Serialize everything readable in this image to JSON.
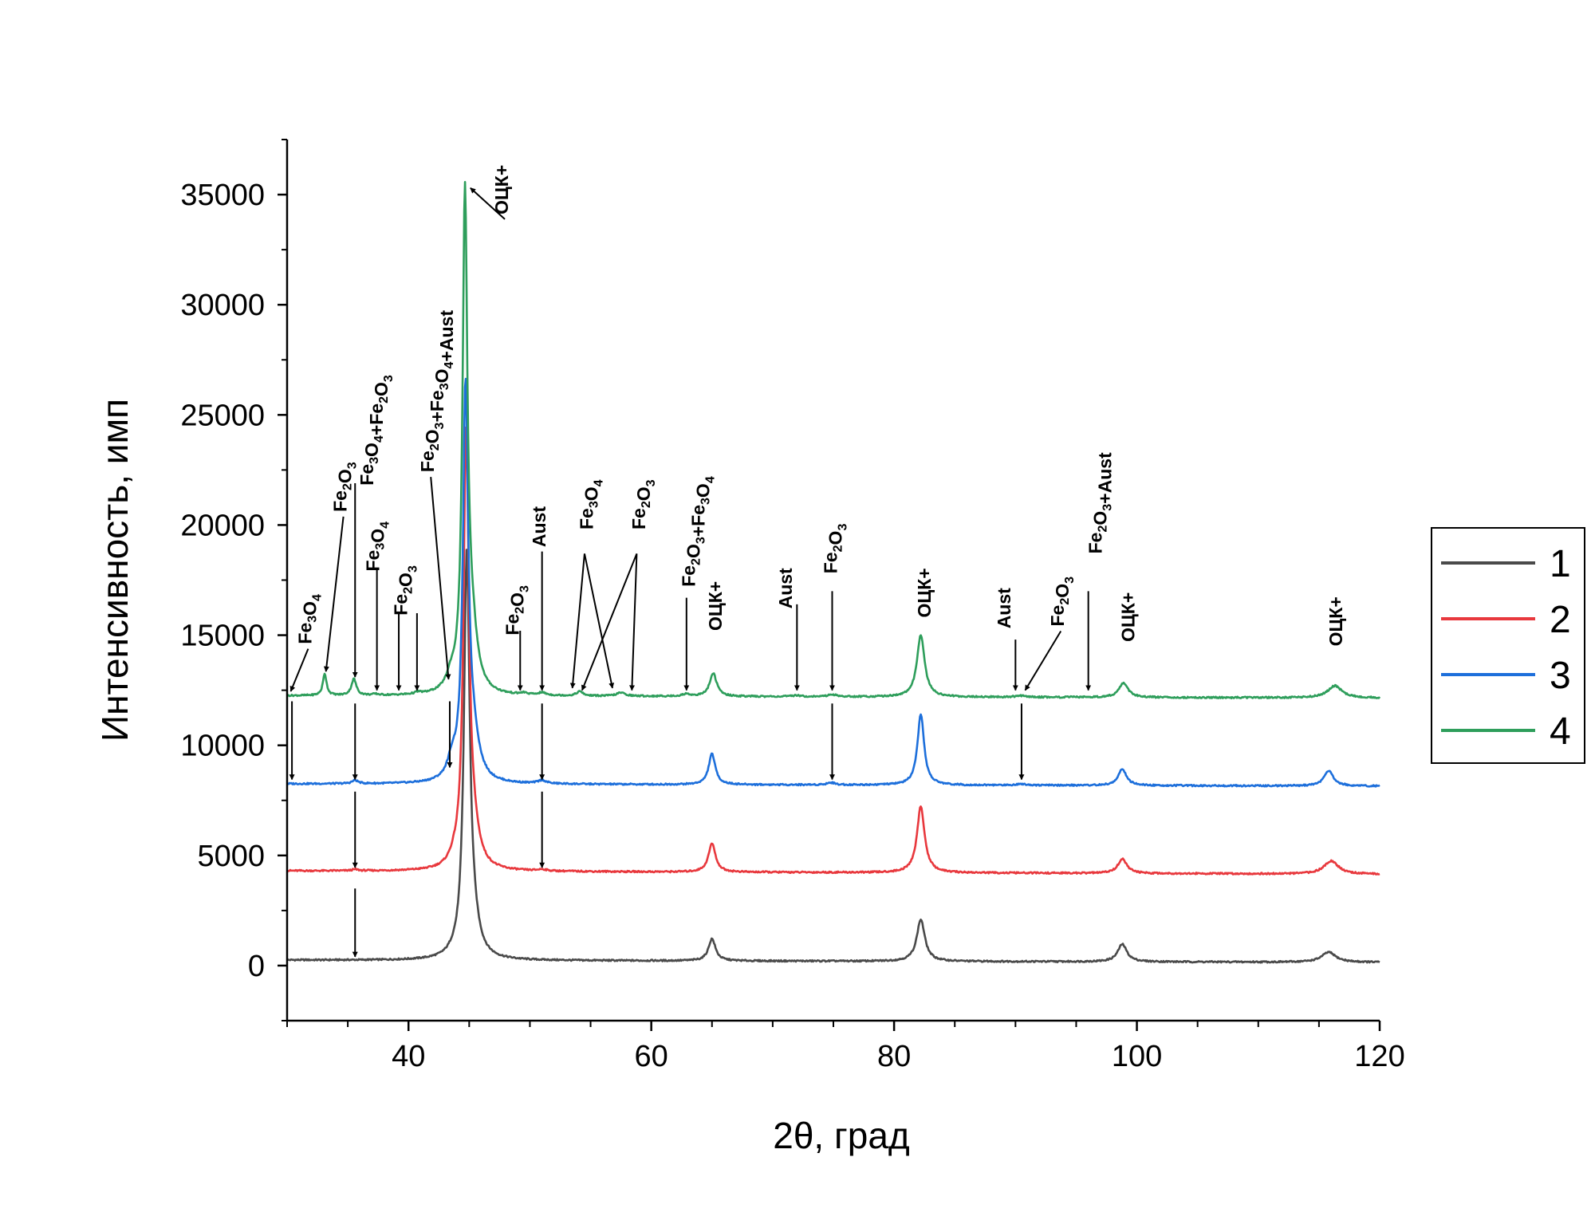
{
  "chart_data": {
    "type": "line",
    "title": "",
    "xlabel": "2θ, град",
    "ylabel": "Интенсивность, имп",
    "xlim": [
      30,
      120
    ],
    "ylim": [
      -2500,
      37500
    ],
    "xticks": [
      40,
      60,
      80,
      100,
      120
    ],
    "yticks": [
      0,
      5000,
      10000,
      15000,
      20000,
      25000,
      30000,
      35000
    ],
    "grid": false,
    "legend": "right",
    "legend_entries": [
      "1",
      "2",
      "3",
      "4"
    ],
    "series": [
      {
        "name": "1",
        "color": "#4a4a4a",
        "baseline": 250,
        "baseline_end": 150,
        "peaks": [
          [
            43.7,
            100,
            0.5
          ],
          [
            44.8,
            18000,
            0.28
          ],
          [
            45.3,
            1200,
            0.6
          ],
          [
            65.0,
            1000,
            0.35
          ],
          [
            82.2,
            1900,
            0.4
          ],
          [
            98.8,
            800,
            0.45
          ],
          [
            115.8,
            450,
            0.7
          ]
        ]
      },
      {
        "name": "2",
        "color": "#e8383d",
        "baseline": 4300,
        "baseline_end": 4150,
        "peaks": [
          [
            35.6,
            60,
            0.3
          ],
          [
            43.8,
            300,
            0.5
          ],
          [
            44.75,
            19500,
            0.26
          ],
          [
            45.3,
            1500,
            0.6
          ],
          [
            51.0,
            70,
            0.4
          ],
          [
            65.0,
            1300,
            0.35
          ],
          [
            82.2,
            3000,
            0.38
          ],
          [
            98.8,
            650,
            0.45
          ],
          [
            116.0,
            600,
            0.7
          ]
        ]
      },
      {
        "name": "3",
        "color": "#1d6fdb",
        "baseline": 8250,
        "baseline_end": 8150,
        "peaks": [
          [
            35.6,
            150,
            0.3
          ],
          [
            43.6,
            800,
            0.45
          ],
          [
            44.7,
            17500,
            0.26
          ],
          [
            45.3,
            1800,
            0.6
          ],
          [
            51.0,
            150,
            0.4
          ],
          [
            65.0,
            1400,
            0.33
          ],
          [
            74.8,
            100,
            0.4
          ],
          [
            82.2,
            3200,
            0.33
          ],
          [
            90.5,
            60,
            0.5
          ],
          [
            98.8,
            750,
            0.4
          ],
          [
            115.8,
            700,
            0.45
          ]
        ]
      },
      {
        "name": "4",
        "color": "#2e9e5b",
        "baseline": 12250,
        "baseline_end": 12150,
        "peaks": [
          [
            33.1,
            1000,
            0.18
          ],
          [
            35.5,
            750,
            0.24
          ],
          [
            37.3,
            50,
            0.3
          ],
          [
            40.8,
            80,
            0.3
          ],
          [
            43.5,
            550,
            0.45
          ],
          [
            44.65,
            22000,
            0.24
          ],
          [
            45.2,
            2500,
            0.55
          ],
          [
            49.5,
            80,
            0.35
          ],
          [
            51.0,
            120,
            0.4
          ],
          [
            54.1,
            200,
            0.3
          ],
          [
            57.5,
            150,
            0.45
          ],
          [
            62.9,
            100,
            0.4
          ],
          [
            65.1,
            1050,
            0.35
          ],
          [
            72.0,
            60,
            0.4
          ],
          [
            74.9,
            100,
            0.4
          ],
          [
            82.2,
            2800,
            0.38
          ],
          [
            90.4,
            60,
            0.5
          ],
          [
            98.9,
            650,
            0.45
          ],
          [
            116.3,
            550,
            0.7
          ]
        ]
      }
    ],
    "annotations": [
      {
        "text": "Fe3O4",
        "parts": [
          [
            "Fe",
            ""
          ],
          [
            "3",
            "sub"
          ],
          [
            "O",
            ""
          ],
          [
            "4",
            "sub"
          ]
        ],
        "at": [
          30.3,
          12450
        ],
        "label": [
          32.0,
          14600
        ],
        "arrow": "diag"
      },
      {
        "text": "Fe2O3",
        "parts": [
          [
            "Fe",
            ""
          ],
          [
            "2",
            "sub"
          ],
          [
            "O",
            ""
          ],
          [
            "3",
            "sub"
          ]
        ],
        "at": [
          33.2,
          13350
        ],
        "label": [
          34.9,
          20600
        ],
        "arrow": "diag"
      },
      {
        "text": "Fe3O4+Fe2O3",
        "parts": [
          [
            "Fe",
            ""
          ],
          [
            "3",
            "sub"
          ],
          [
            "O",
            ""
          ],
          [
            "4",
            "sub"
          ],
          [
            "+Fe",
            ""
          ],
          [
            "2",
            "sub"
          ],
          [
            "O",
            ""
          ],
          [
            "3",
            "sub"
          ]
        ],
        "at": [
          35.6,
          13100
        ],
        "label": [
          37.1,
          21800
        ],
        "arrow": "vert",
        "from": 21900
      },
      {
        "text": "Fe3O4",
        "parts": [
          [
            "Fe",
            ""
          ],
          [
            "3",
            "sub"
          ],
          [
            "O",
            ""
          ],
          [
            "4",
            "sub"
          ]
        ],
        "at": [
          37.4,
          12500
        ],
        "label": [
          37.6,
          17900
        ],
        "arrow": "vert",
        "from": 18000
      },
      {
        "text": "Fe2O3",
        "parts": [
          [
            "Fe",
            ""
          ],
          [
            "2",
            "sub"
          ],
          [
            "O",
            ""
          ],
          [
            "3",
            "sub"
          ]
        ],
        "at": [
          39.2,
          12500
        ],
        "label": [
          39.9,
          15900
        ],
        "arrow": "vert",
        "from": 16000
      },
      {
        "text": "Fe2O3",
        "parts": [
          [
            "Fe",
            ""
          ],
          [
            "2",
            "sub"
          ],
          [
            "O",
            ""
          ],
          [
            "3",
            "sub"
          ]
        ],
        "at": [
          40.7,
          12500
        ],
        "label": null,
        "arrow": "vert",
        "from": 16000
      },
      {
        "text": "Fe2O3+Fe3O4+Aust",
        "parts": [
          [
            "Fe",
            ""
          ],
          [
            "2",
            "sub"
          ],
          [
            "O",
            ""
          ],
          [
            "3",
            "sub"
          ],
          [
            "+Fe",
            ""
          ],
          [
            "3",
            "sub"
          ],
          [
            "O",
            ""
          ],
          [
            "4",
            "sub"
          ],
          [
            "+Aust",
            ""
          ]
        ],
        "at": [
          43.3,
          13000
        ],
        "label": [
          42.1,
          22400
        ],
        "arrow": "diag"
      },
      {
        "text": "ОЦК+",
        "parts": [
          [
            "ОЦК+",
            ""
          ]
        ],
        "at": [
          45.1,
          35300
        ],
        "label": [
          48.2,
          34100
        ],
        "arrow": "diag"
      },
      {
        "text": "Fe2O3",
        "parts": [
          [
            "Fe",
            ""
          ],
          [
            "2",
            "sub"
          ],
          [
            "O",
            ""
          ],
          [
            "3",
            "sub"
          ]
        ],
        "at": [
          49.2,
          12500
        ],
        "label": [
          49.1,
          15000
        ],
        "arrow": "vert",
        "from": 15200
      },
      {
        "text": "Aust",
        "parts": [
          [
            "Aust",
            ""
          ]
        ],
        "at": [
          51.0,
          12500
        ],
        "label": [
          51.3,
          19000
        ],
        "arrow": "vert",
        "from": 18800
      },
      {
        "text": "Fe3O4",
        "parts": [
          [
            "Fe",
            ""
          ],
          [
            "3",
            "sub"
          ],
          [
            "O",
            ""
          ],
          [
            "4",
            "sub"
          ]
        ],
        "at": [
          53.5,
          12600
        ],
        "label": [
          55.2,
          19800
        ],
        "arrow": "fan",
        "from": [
          54.5,
          18700
        ],
        "targets": [
          [
            53.5,
            12600
          ],
          [
            56.8,
            12600
          ]
        ]
      },
      {
        "text": "Fe2O3",
        "parts": [
          [
            "Fe",
            ""
          ],
          [
            "2",
            "sub"
          ],
          [
            "O",
            ""
          ],
          [
            "3",
            "sub"
          ]
        ],
        "at": [
          54.2,
          12500
        ],
        "label": [
          59.5,
          19800
        ],
        "arrow": "fan",
        "from": [
          58.8,
          18700
        ],
        "targets": [
          [
            54.3,
            12500
          ],
          [
            58.4,
            12500
          ]
        ]
      },
      {
        "text": "Fe2O3+Fe3O4",
        "parts": [
          [
            "Fe",
            ""
          ],
          [
            "2",
            "sub"
          ],
          [
            "O",
            ""
          ],
          [
            "3",
            "sub"
          ],
          [
            "+Fe",
            ""
          ],
          [
            "3",
            "sub"
          ],
          [
            "O",
            ""
          ],
          [
            "4",
            "sub"
          ]
        ],
        "at": [
          62.9,
          12500
        ],
        "label": [
          63.6,
          17200
        ],
        "arrow": "vert",
        "from": 16700
      },
      {
        "text": "ОЦК+",
        "parts": [
          [
            "ОЦК+",
            ""
          ]
        ],
        "at": null,
        "label": [
          65.8,
          15200
        ],
        "arrow": "none"
      },
      {
        "text": "Aust",
        "parts": [
          [
            "Aust",
            ""
          ]
        ],
        "at": [
          72.0,
          12500
        ],
        "label": [
          71.6,
          16200
        ],
        "arrow": "vert",
        "from": 16400
      },
      {
        "text": "Fe2O3",
        "parts": [
          [
            "Fe",
            ""
          ],
          [
            "2",
            "sub"
          ],
          [
            "O",
            ""
          ],
          [
            "3",
            "sub"
          ]
        ],
        "at": [
          74.9,
          12500
        ],
        "label": [
          75.3,
          17800
        ],
        "arrow": "vert",
        "from": 17000
      },
      {
        "text": "ОЦК+",
        "parts": [
          [
            "ОЦК+",
            ""
          ]
        ],
        "at": null,
        "label": [
          83.0,
          15800
        ],
        "arrow": "none"
      },
      {
        "text": "Aust",
        "parts": [
          [
            "Aust",
            ""
          ]
        ],
        "at": [
          90.0,
          12500
        ],
        "label": [
          89.6,
          15300
        ],
        "arrow": "vert",
        "from": 14800
      },
      {
        "text": "Fe2O3",
        "parts": [
          [
            "Fe",
            ""
          ],
          [
            "2",
            "sub"
          ],
          [
            "O",
            ""
          ],
          [
            "3",
            "sub"
          ]
        ],
        "at": [
          90.8,
          12500
        ],
        "label": [
          94.0,
          15400
        ],
        "arrow": "diag"
      },
      {
        "text": "Fe2O3+Aust",
        "parts": [
          [
            "Fe",
            ""
          ],
          [
            "2",
            "sub"
          ],
          [
            "O",
            ""
          ],
          [
            "3",
            "sub"
          ],
          [
            "+Aust",
            ""
          ]
        ],
        "at": [
          96.0,
          12500
        ],
        "label": [
          97.1,
          18700
        ],
        "arrow": "vert",
        "from": 17000
      },
      {
        "text": "ОЦК+",
        "parts": [
          [
            "ОЦК+",
            ""
          ]
        ],
        "at": null,
        "label": [
          99.8,
          14700
        ],
        "arrow": "none"
      },
      {
        "text": "ОЦК+",
        "parts": [
          [
            "ОЦК+",
            ""
          ]
        ],
        "at": null,
        "label": [
          116.9,
          14500
        ],
        "arrow": "none"
      }
    ],
    "guide_arrows": [
      {
        "x": 30.4,
        "from": 12000,
        "to": 8450
      },
      {
        "x": 35.6,
        "from": 11900,
        "to": 8450
      },
      {
        "x": 43.4,
        "from": 12000,
        "to": 9000
      },
      {
        "x": 51.0,
        "from": 11900,
        "to": 8450
      },
      {
        "x": 74.9,
        "from": 11900,
        "to": 8450
      },
      {
        "x": 90.5,
        "from": 11900,
        "to": 8450
      },
      {
        "x": 35.6,
        "from": 7900,
        "to": 4450
      },
      {
        "x": 51.0,
        "from": 7900,
        "to": 4450
      },
      {
        "x": 35.6,
        "from": 3500,
        "to": 400
      }
    ]
  }
}
